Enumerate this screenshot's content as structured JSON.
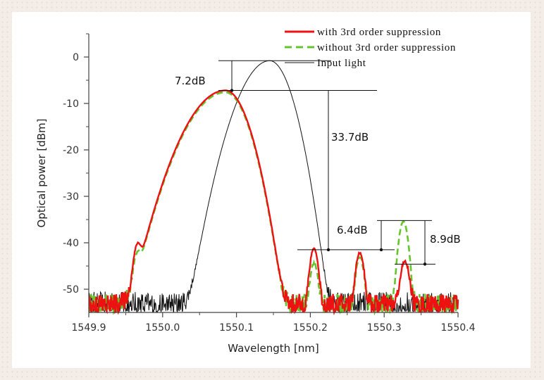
{
  "chart_data": {
    "type": "line",
    "title": "",
    "xlabel": "Wavelength [nm]",
    "ylabel": "Optical power [dBm]",
    "xlim": [
      1549.9,
      1550.4
    ],
    "ylim": [
      -55,
      5
    ],
    "xticks": [
      1549.9,
      1550.0,
      1550.1,
      1550.2,
      1550.3,
      1550.4
    ],
    "xtick_labels": [
      "1549.9",
      "1550.0",
      "1550.1",
      "1550.2",
      "1550.3",
      "1550.4"
    ],
    "yticks": [
      0,
      -10,
      -20,
      -30,
      -40,
      -50
    ],
    "ytick_labels": [
      "0",
      "-10",
      "-20",
      "-30",
      "-40",
      "-50"
    ],
    "grid": false,
    "legend_position": "top-right",
    "noise_floor_dBm": -53.5,
    "series": [
      {
        "name": "with 3rd order suppression",
        "color": "#ee1111",
        "style": "solid",
        "peaks": [
          {
            "x": 1549.966,
            "y": -41.5
          },
          {
            "x": 1550.085,
            "y": -7.2
          },
          {
            "x": 1550.205,
            "y": -41.5
          },
          {
            "x": 1550.267,
            "y": -42.5
          },
          {
            "x": 1550.328,
            "y": -44.6
          }
        ]
      },
      {
        "name": "without 3rd order suppression",
        "color": "#66c52e",
        "style": "dashed",
        "peaks": [
          {
            "x": 1549.966,
            "y": -44.0
          },
          {
            "x": 1550.085,
            "y": -7.6
          },
          {
            "x": 1550.205,
            "y": -45.0
          },
          {
            "x": 1550.267,
            "y": -43.5
          },
          {
            "x": 1550.326,
            "y": -35.5
          }
        ]
      },
      {
        "name": "Input light",
        "color": "#111111",
        "style": "solid",
        "peaks": [
          {
            "x": 1550.145,
            "y": -0.8
          }
        ]
      }
    ],
    "annotations": [
      {
        "text": "7.2dB"
      },
      {
        "text": "33.7dB"
      },
      {
        "text": "6.4dB"
      },
      {
        "text": "8.9dB"
      }
    ]
  }
}
